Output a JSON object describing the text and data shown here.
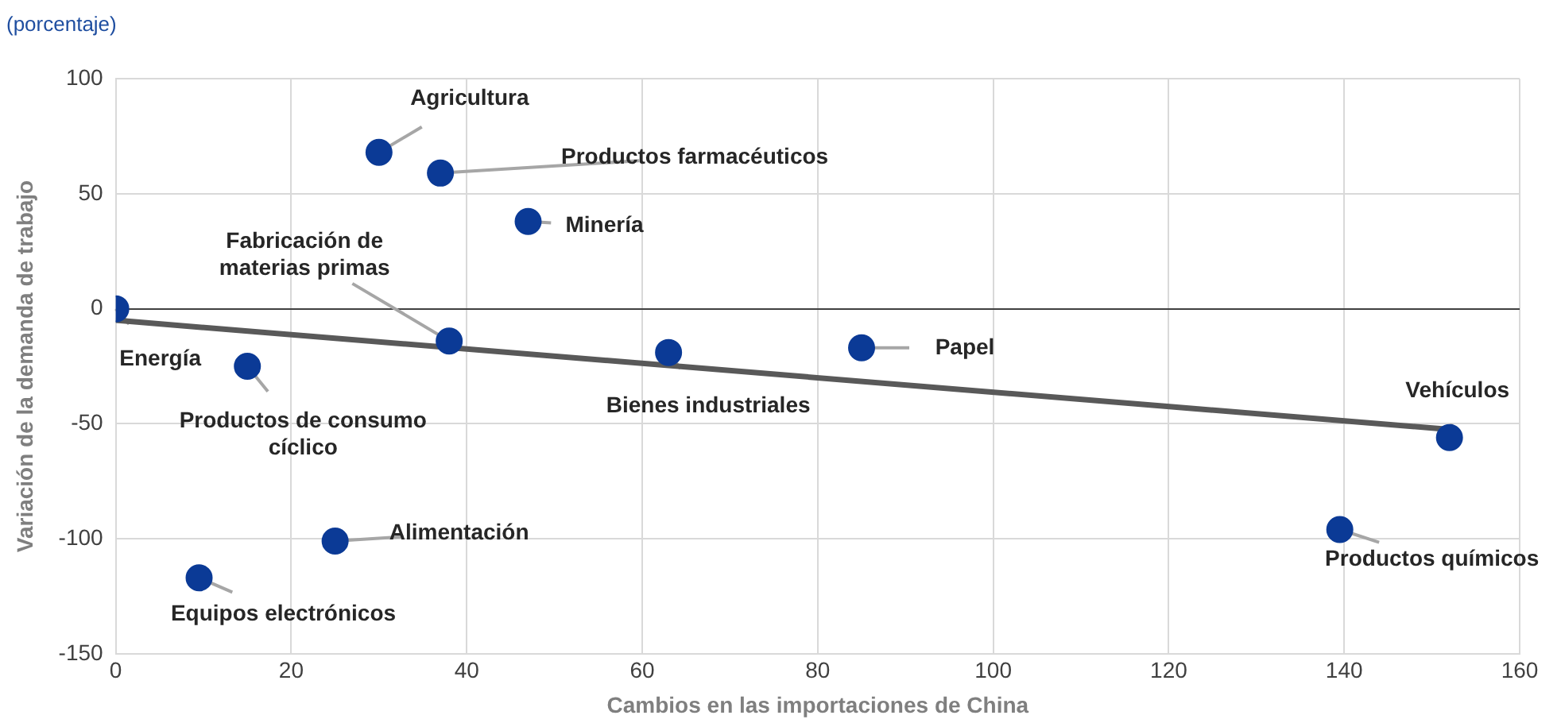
{
  "chart_data": {
    "type": "scatter",
    "title": "(porcentaje)",
    "xlabel": "Cambios en las importaciones de China",
    "ylabel": "Variación de la demanda de trabajo",
    "xlim": [
      0,
      160
    ],
    "xticks": [
      0,
      20,
      40,
      60,
      80,
      100,
      120,
      140,
      160
    ],
    "ylim": [
      -150,
      100
    ],
    "yticks": [
      -150,
      -100,
      -50,
      0,
      50,
      100
    ],
    "grid": true,
    "legend": false,
    "marker": "circle",
    "series": [
      {
        "color": "#0b3a96",
        "x": [
          0,
          15,
          9.5,
          25,
          30,
          37,
          47,
          38,
          63,
          85,
          152,
          139.5
        ],
        "values": [
          0,
          -25,
          -117,
          -101,
          68,
          59,
          38,
          -14,
          -19,
          -17,
          -56,
          -96
        ]
      },
      {
        "type": "line",
        "color": "#595959",
        "x": [
          0,
          152
        ],
        "values": [
          -5,
          -52.5
        ],
        "marker": "none"
      }
    ],
    "annotations": [
      {
        "text": "Energía",
        "x": 0,
        "y": 0
      },
      {
        "text": "Productos de consumo\ncíclico",
        "x": 15,
        "y": -25
      },
      {
        "text": "Equipos electrónicos",
        "x": 9.5,
        "y": -117
      },
      {
        "text": "Alimentación",
        "x": 25,
        "y": -101
      },
      {
        "text": "Agricultura",
        "x": 30,
        "y": 68
      },
      {
        "text": "Productos farmacéuticos",
        "x": 37,
        "y": 59
      },
      {
        "text": "Minería",
        "x": 47,
        "y": 38
      },
      {
        "text": "Fabricación de\nmaterias primas",
        "x": 38,
        "y": -14
      },
      {
        "text": "Bienes industriales",
        "x": 63,
        "y": -19
      },
      {
        "text": "Papel",
        "x": 85,
        "y": -17
      },
      {
        "text": "Vehículos",
        "x": 152,
        "y": -56
      },
      {
        "text": "Productos químicos",
        "x": 139.5,
        "y": -96
      }
    ]
  }
}
